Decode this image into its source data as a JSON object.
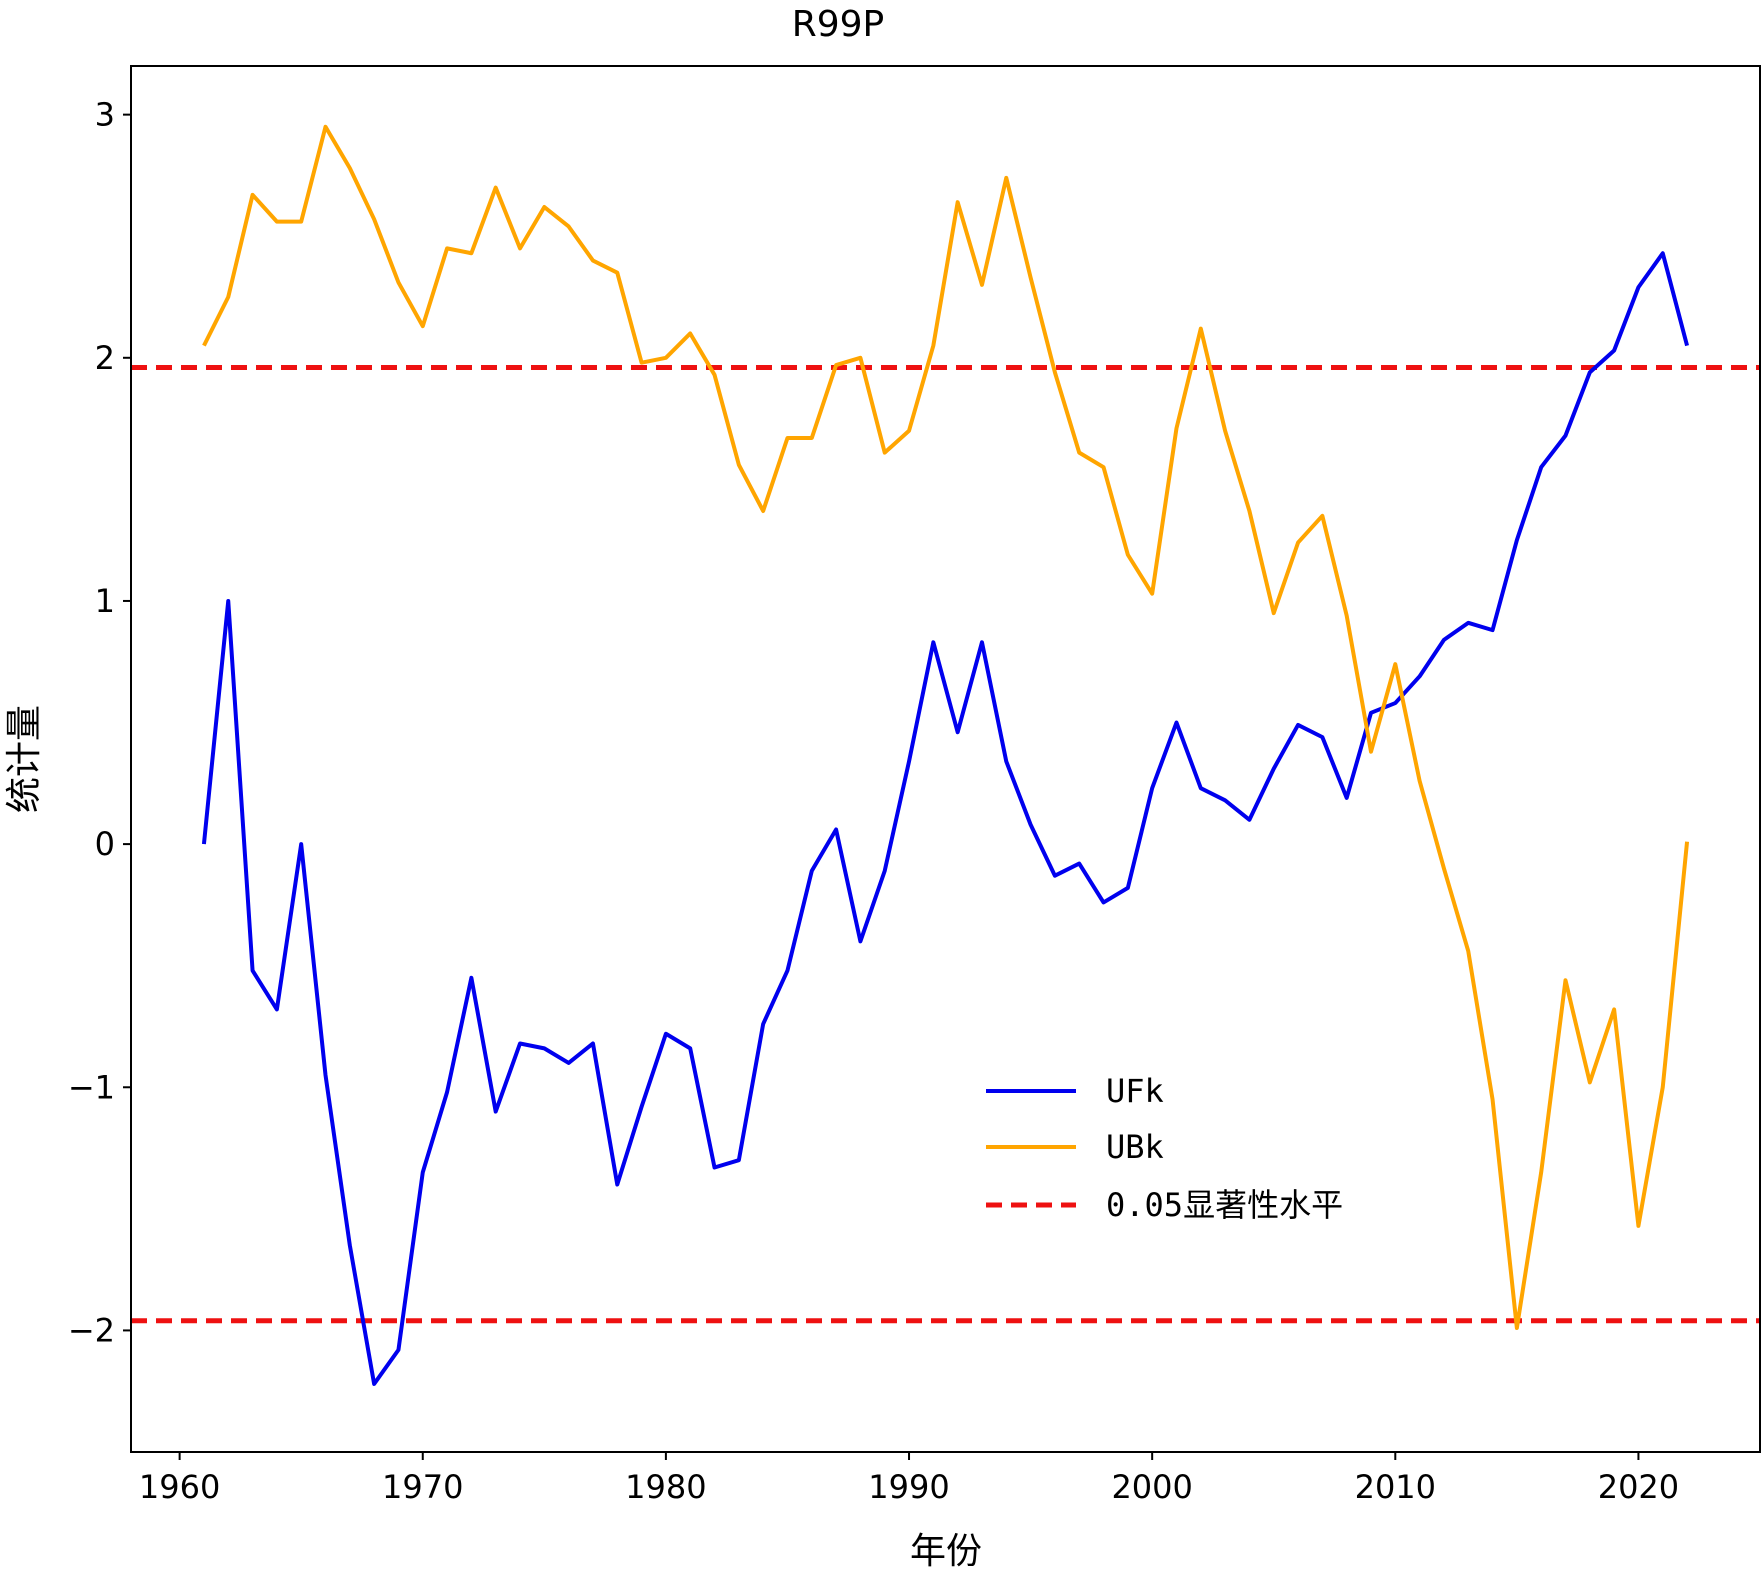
{
  "chart_data": {
    "type": "line",
    "title": "R99P",
    "xlabel": "年份",
    "ylabel": "统计量",
    "xlim": [
      1958,
      2025
    ],
    "ylim": [
      -2.5,
      3.2
    ],
    "xticks": [
      1960,
      1970,
      1980,
      1990,
      2000,
      2010,
      2020
    ],
    "yticks": [
      -2,
      -1,
      0,
      1,
      2,
      3
    ],
    "ytick_labels": [
      "−2",
      "−1",
      "0",
      "1",
      "2",
      "3"
    ],
    "legend_position": "center-right",
    "x": [
      1961,
      1962,
      1963,
      1964,
      1965,
      1966,
      1967,
      1968,
      1969,
      1970,
      1971,
      1972,
      1973,
      1974,
      1975,
      1976,
      1977,
      1978,
      1979,
      1980,
      1981,
      1982,
      1983,
      1984,
      1985,
      1986,
      1987,
      1988,
      1989,
      1990,
      1991,
      1992,
      1993,
      1994,
      1995,
      1996,
      1997,
      1998,
      1999,
      2000,
      2001,
      2002,
      2003,
      2004,
      2005,
      2006,
      2007,
      2008,
      2009,
      2010,
      2011,
      2012,
      2013,
      2014,
      2015,
      2016,
      2017,
      2018,
      2019,
      2020,
      2021,
      2022
    ],
    "series": [
      {
        "name": "UFk",
        "color": "#0000ee",
        "style": "solid",
        "values": [
          0.0,
          1.0,
          -0.52,
          -0.68,
          0.0,
          -0.95,
          -1.65,
          -2.22,
          -2.08,
          -1.35,
          -1.02,
          -0.55,
          -1.1,
          -0.82,
          -0.84,
          -0.9,
          -0.82,
          -1.4,
          -1.08,
          -0.78,
          -0.84,
          -1.33,
          -1.3,
          -0.74,
          -0.52,
          -0.11,
          0.06,
          -0.4,
          -0.11,
          0.34,
          0.83,
          0.46,
          0.83,
          0.34,
          0.08,
          -0.13,
          -0.08,
          -0.24,
          -0.18,
          0.23,
          0.5,
          0.23,
          0.18,
          0.1,
          0.31,
          0.49,
          0.44,
          0.19,
          0.54,
          0.58,
          0.69,
          0.84,
          0.91,
          0.88,
          1.25,
          1.55,
          1.68,
          1.94,
          2.03,
          2.29,
          2.43,
          2.05
        ]
      },
      {
        "name": "UBk",
        "color": "#ffa500",
        "style": "solid",
        "values": [
          2.05,
          2.25,
          2.67,
          2.56,
          2.56,
          2.95,
          2.78,
          2.57,
          2.31,
          2.13,
          2.45,
          2.43,
          2.7,
          2.45,
          2.62,
          2.54,
          2.4,
          2.35,
          1.98,
          2.0,
          2.1,
          1.93,
          1.56,
          1.37,
          1.67,
          1.67,
          1.97,
          2.0,
          1.61,
          1.7,
          2.05,
          2.64,
          2.3,
          2.74,
          2.33,
          1.94,
          1.61,
          1.55,
          1.19,
          1.03,
          1.71,
          2.12,
          1.7,
          1.37,
          0.95,
          1.24,
          1.35,
          0.94,
          0.38,
          0.74,
          0.26,
          -0.1,
          -0.44,
          -1.05,
          -1.99,
          -1.35,
          -0.56,
          -0.98,
          -0.68,
          -1.57,
          -1.0,
          0.01
        ]
      }
    ],
    "reference_lines": {
      "name": "0.05显著性水平",
      "color": "#ee1111",
      "style": "dashed",
      "values": [
        1.96,
        -1.96
      ]
    }
  }
}
